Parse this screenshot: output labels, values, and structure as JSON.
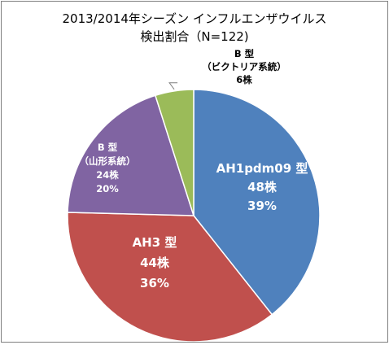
{
  "chart_data": {
    "type": "pie",
    "title": [
      "2013/2014年シーズン インフルエンザウイルス",
      "検出割合（N=122)"
    ],
    "total": 122,
    "slices": [
      {
        "label": [
          "AH1pdm09 型"
        ],
        "count": 48,
        "count_text": "48株",
        "percent_text": "39%",
        "color": "#4F81BD",
        "label_color": "#ffffff"
      },
      {
        "label": [
          "AH3 型"
        ],
        "count": 44,
        "count_text": "44株",
        "percent_text": "36%",
        "color": "#C0504D",
        "label_color": "#ffffff"
      },
      {
        "label": [
          "B 型",
          "（山形系統）"
        ],
        "count": 24,
        "count_text": "24株",
        "percent_text": "20%",
        "color": "#8064A2",
        "label_color": "#ffffff"
      },
      {
        "label": [
          "B 型",
          "（ビクトリア系統）"
        ],
        "count": 6,
        "count_text": "6株",
        "percent_text": "",
        "color": "#9BBB59",
        "label_color": "#000000"
      }
    ]
  }
}
